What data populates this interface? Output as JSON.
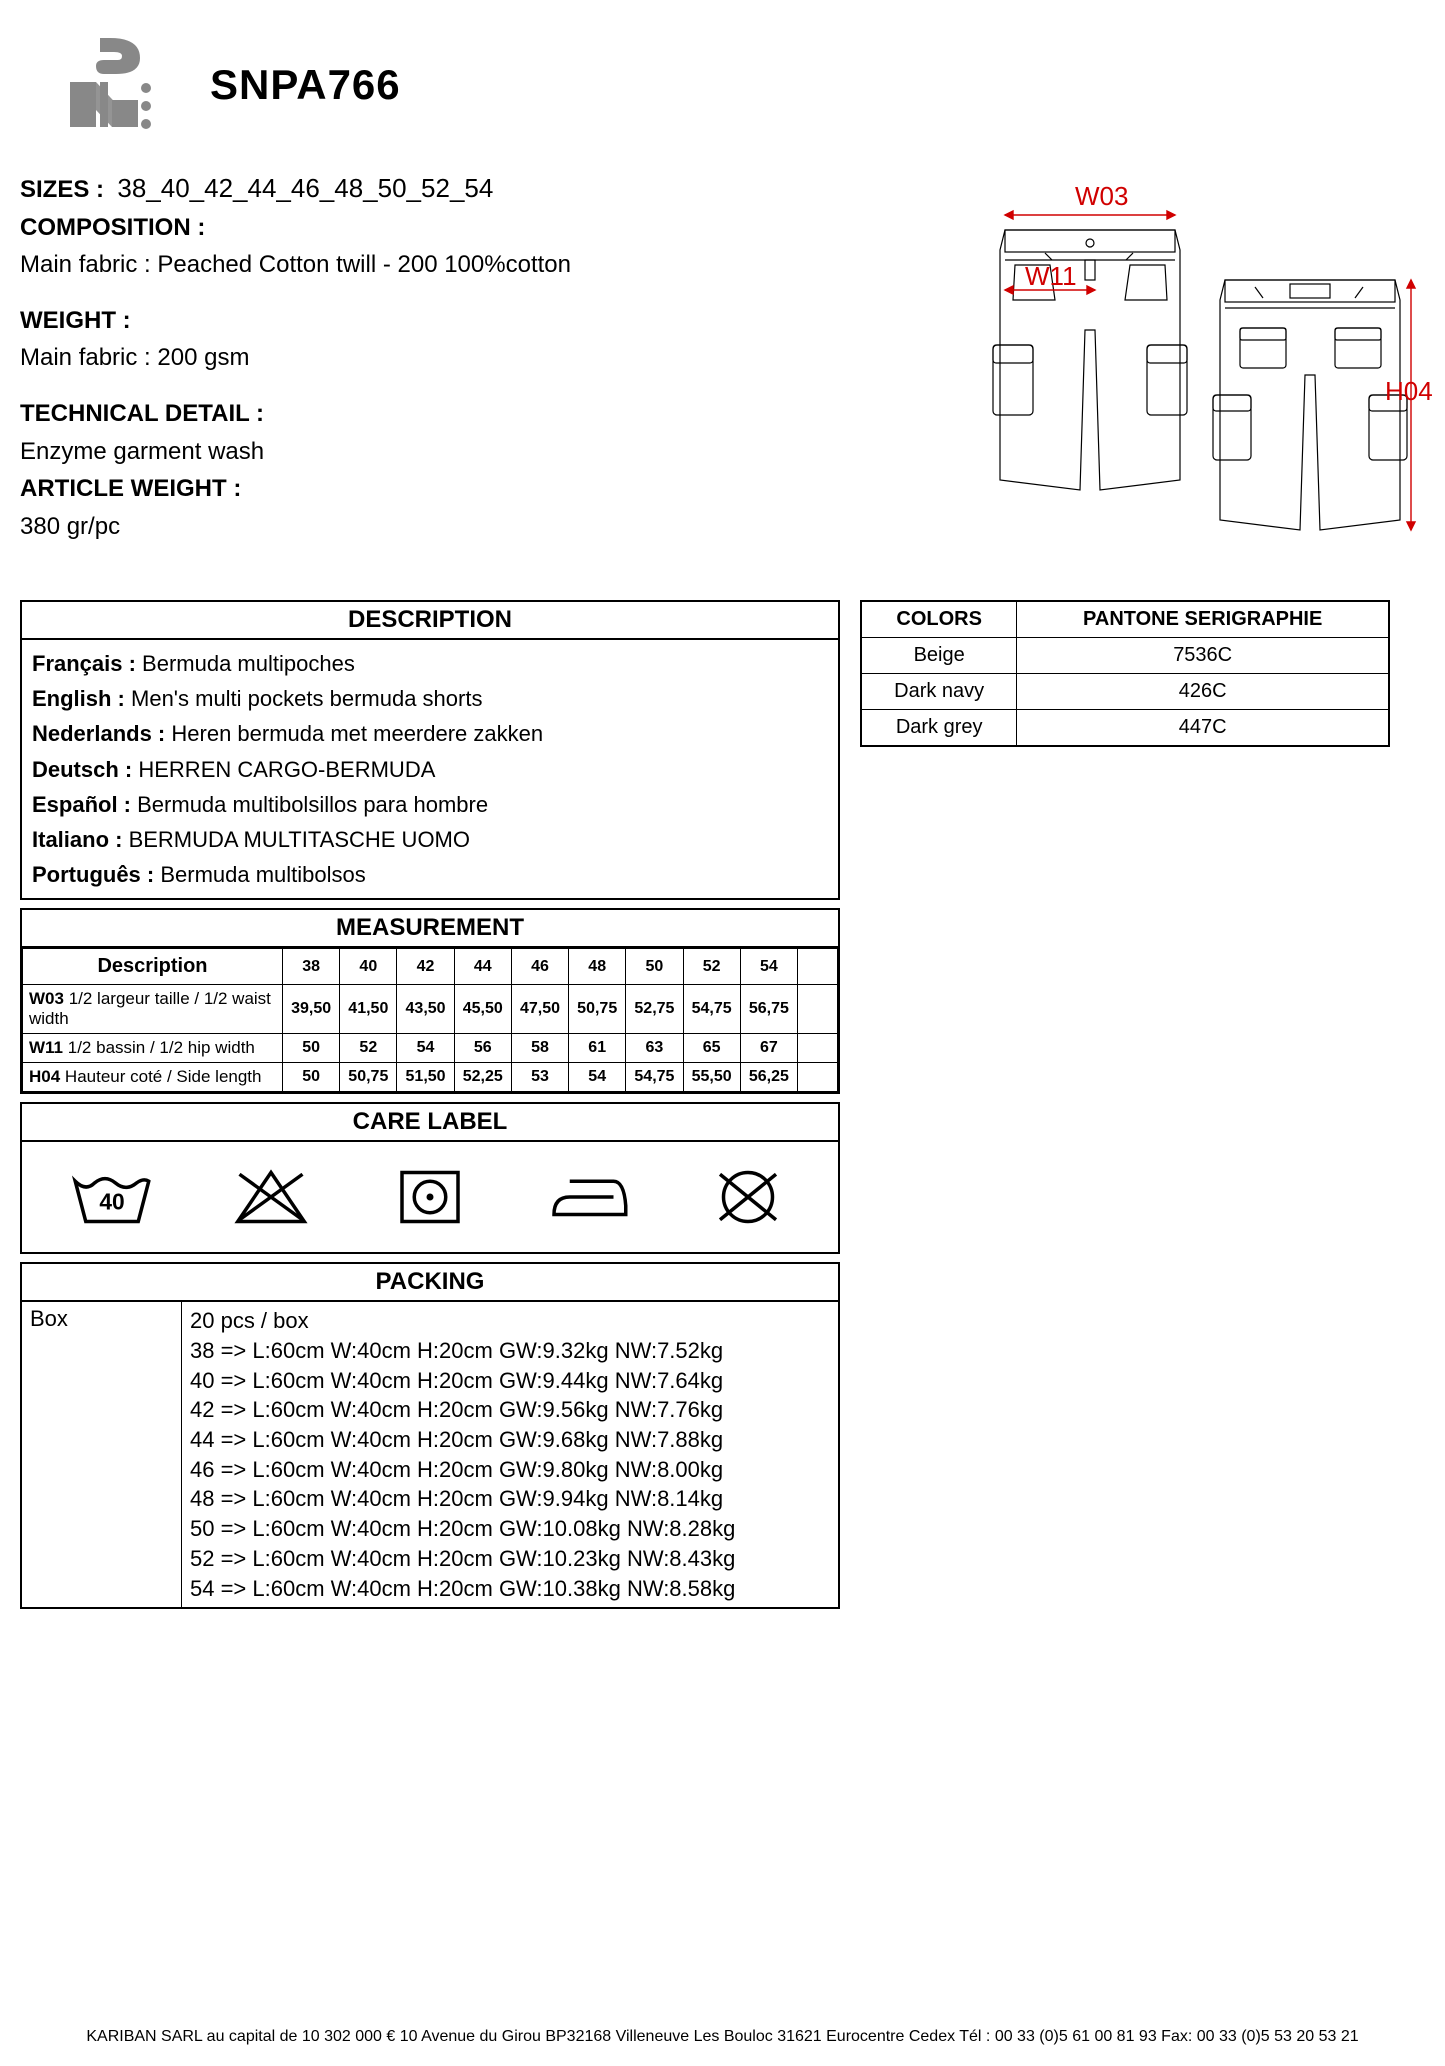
{
  "product_code": "SNPA766",
  "specs": {
    "sizes_label": "SIZES :",
    "sizes_value": "38_40_42_44_46_48_50_52_54",
    "composition_label": "COMPOSITION :",
    "composition_value": "Main fabric : Peached Cotton twill - 200  100%cotton",
    "weight_label": "WEIGHT :",
    "weight_value": "Main fabric : 200 gsm",
    "tech_label": "TECHNICAL DETAIL :",
    "tech_value": " Enzyme garment wash",
    "artweight_label": "ARTICLE WEIGHT :",
    "artweight_value": "380 gr/pc"
  },
  "diagram": {
    "labels": {
      "w03": "W03",
      "w11": "W11",
      "h04": "H04"
    },
    "label_color": "#d00000"
  },
  "description": {
    "title": "DESCRIPTION",
    "rows": [
      {
        "lang": "Français :",
        "text": " Bermuda multipoches"
      },
      {
        "lang": "English :",
        "text": " Men's multi pockets bermuda shorts"
      },
      {
        "lang": "Nederlands :",
        "text": " Heren bermuda met meerdere zakken"
      },
      {
        "lang": "Deutsch :",
        "text": " HERREN CARGO-BERMUDA"
      },
      {
        "lang": "Español :",
        "text": " Bermuda multibolsillos para hombre"
      },
      {
        "lang": "Italiano :",
        "text": " BERMUDA MULTITASCHE UOMO"
      },
      {
        "lang": "Português :",
        "text": " Bermuda multibolsos"
      }
    ]
  },
  "colors": {
    "title_left": "COLORS",
    "title_right": "PANTONE SERIGRAPHIE",
    "rows": [
      {
        "name": "Beige",
        "pantone": "7536C"
      },
      {
        "name": "Dark navy",
        "pantone": "426C"
      },
      {
        "name": "Dark grey",
        "pantone": "447C"
      }
    ]
  },
  "measurement": {
    "title": "MEASUREMENT",
    "desc_head": "Description",
    "size_heads": [
      "38",
      "40",
      "42",
      "44",
      "46",
      "48",
      "50",
      "52",
      "54"
    ],
    "rows": [
      {
        "code": "W03",
        "desc": " 1/2  largeur taille / 1/2 waist width",
        "vals": [
          "39,50",
          "41,50",
          "43,50",
          "45,50",
          "47,50",
          "50,75",
          "52,75",
          "54,75",
          "56,75"
        ]
      },
      {
        "code": "W11",
        "desc": " 1/2 bassin / 1/2 hip width",
        "vals": [
          "50",
          "52",
          "54",
          "56",
          "58",
          "61",
          "63",
          "65",
          "67"
        ]
      },
      {
        "code": "H04",
        "desc": " Hauteur coté / Side length",
        "vals": [
          "50",
          "50,75",
          "51,50",
          "52,25",
          "53",
          "54",
          "54,75",
          "55,50",
          "56,25"
        ]
      }
    ]
  },
  "care": {
    "title": "CARE LABEL",
    "wash_temp": "40"
  },
  "packing": {
    "title": "PACKING",
    "label": "Box",
    "header_line": "20 pcs / box",
    "lines": [
      "38 => L:60cm W:40cm H:20cm GW:9.32kg NW:7.52kg",
      "40 => L:60cm W:40cm H:20cm GW:9.44kg NW:7.64kg",
      "42 => L:60cm W:40cm H:20cm GW:9.56kg NW:7.76kg",
      "44 => L:60cm W:40cm H:20cm GW:9.68kg NW:7.88kg",
      "46 => L:60cm W:40cm H:20cm GW:9.80kg NW:8.00kg",
      "48 => L:60cm W:40cm H:20cm GW:9.94kg NW:8.14kg",
      "50 => L:60cm W:40cm H:20cm GW:10.08kg NW:8.28kg",
      "52 => L:60cm W:40cm H:20cm GW:10.23kg NW:8.43kg",
      "54 => L:60cm W:40cm H:20cm GW:10.38kg NW:8.58kg"
    ]
  },
  "footer": "KARIBAN SARL au capital de 10 302 000 € 10 Avenue du Girou BP32168 Villeneuve Les Bouloc 31621 Eurocentre Cedex Tél : 00 33 (0)5 61 00 81 93 Fax: 00 33 (0)5 53 20 53 21"
}
